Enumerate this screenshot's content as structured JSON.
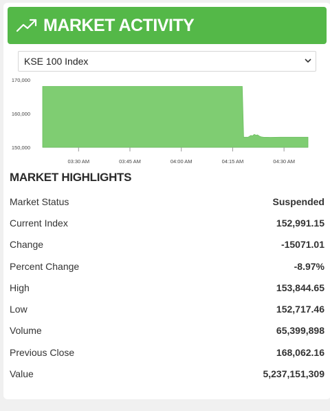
{
  "header": {
    "title": "MARKET ACTIVITY",
    "icon": "trending-up-icon",
    "color": "#54b848"
  },
  "index_select": {
    "selected": "KSE 100 Index"
  },
  "chart_data": {
    "type": "area",
    "color": "#7fcd72",
    "y_ticks": [
      "170,000",
      "160,000",
      "150,000"
    ],
    "y_tick_values": [
      170000,
      160000,
      150000
    ],
    "ylim": [
      150000,
      170000
    ],
    "x_ticks": [
      "03:30 AM",
      "03:45 AM",
      "04:00 AM",
      "04:15 AM",
      "04:30 AM"
    ],
    "x_tick_minutes": [
      30,
      45,
      60,
      75,
      90
    ],
    "x_range_minutes": [
      19.5,
      97
    ],
    "points": [
      [
        19.5,
        168062
      ],
      [
        77.8,
        168062
      ],
      [
        78.2,
        152990
      ],
      [
        79.5,
        152990
      ],
      [
        80.3,
        153500
      ],
      [
        80.8,
        153400
      ],
      [
        81.3,
        153844
      ],
      [
        81.8,
        153600
      ],
      [
        82.3,
        153700
      ],
      [
        82.8,
        153300
      ],
      [
        83.3,
        153100
      ],
      [
        84,
        153000
      ],
      [
        86,
        152950
      ],
      [
        89,
        152990
      ],
      [
        92,
        152991
      ],
      [
        97,
        152991
      ]
    ]
  },
  "highlights": {
    "title": "MARKET HIGHLIGHTS",
    "rows": [
      {
        "label": "Market Status",
        "value": "Suspended"
      },
      {
        "label": "Current Index",
        "value": "152,991.15"
      },
      {
        "label": "Change",
        "value": "-15071.01"
      },
      {
        "label": "Percent Change",
        "value": "-8.97%"
      },
      {
        "label": "High",
        "value": "153,844.65"
      },
      {
        "label": "Low",
        "value": "152,717.46"
      },
      {
        "label": "Volume",
        "value": "65,399,898"
      },
      {
        "label": "Previous Close",
        "value": "168,062.16"
      },
      {
        "label": "Value",
        "value": "5,237,151,309"
      }
    ]
  }
}
